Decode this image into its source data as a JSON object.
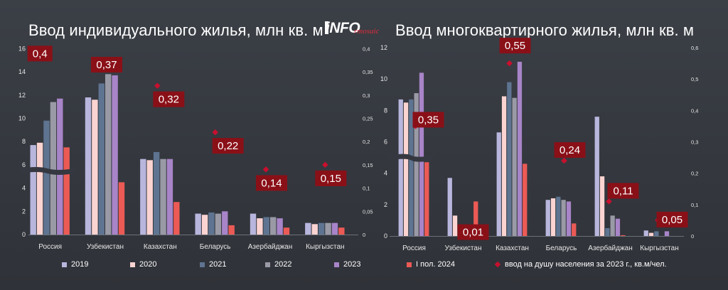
{
  "title_left": "Ввод индивидуального жилья, млн кв. м",
  "title_right": "Ввод многоквартирного жилья, млн кв. м",
  "logo": {
    "main": "iNFO",
    "sub": "rmosaic"
  },
  "colors": {
    "s2019": "#b8b6dd",
    "s2020": "#fbd4d2",
    "s2021": "#5e7491",
    "s2022": "#9a9aa6",
    "s2023": "#a884c8",
    "sH1_2024": "#ec5a55",
    "marker": "#c8102e",
    "label_bg": "#8a1018",
    "axis_text": "#e6e6e6",
    "grid": "#4c5058"
  },
  "legend": [
    {
      "label": "2019",
      "color": "#b8b6dd"
    },
    {
      "label": "2020",
      "color": "#fbd4d2"
    },
    {
      "label": "2021",
      "color": "#5e7491"
    },
    {
      "label": "2022",
      "color": "#9a9aa6"
    },
    {
      "label": "2023",
      "color": "#a884c8"
    },
    {
      "label": "I пол. 2024",
      "color": "#ec5a55"
    },
    {
      "label": "ввод на душу населения за 2023 г., кв.м/чел.",
      "marker": "diamond"
    }
  ],
  "chart_data": [
    {
      "type": "bar",
      "title": "Ввод индивидуального жилья, млн кв. м",
      "categories": [
        "Россия",
        "Узбекистан",
        "Казахстан",
        "Беларусь",
        "Азербайджан",
        "Кыргызстан"
      ],
      "series": [
        {
          "name": "2019",
          "values": [
            7.7,
            11.8,
            6.5,
            1.8,
            1.8,
            1.0
          ]
        },
        {
          "name": "2020",
          "values": [
            7.9,
            11.6,
            6.4,
            1.7,
            1.4,
            0.9
          ]
        },
        {
          "name": "2021",
          "values": [
            9.8,
            13.0,
            7.1,
            1.9,
            1.5,
            1.0
          ]
        },
        {
          "name": "2022",
          "values": [
            11.4,
            13.8,
            6.5,
            1.8,
            1.5,
            1.0
          ]
        },
        {
          "name": "2023",
          "values": [
            11.7,
            13.7,
            6.5,
            2.0,
            1.4,
            1.0
          ]
        },
        {
          "name": "I пол. 2024",
          "values": [
            7.5,
            4.5,
            2.8,
            0.8,
            0.6,
            0.6
          ]
        }
      ],
      "per_capita_2023": {
        "values": [
          0.4,
          0.37,
          0.32,
          0.22,
          0.14,
          0.15
        ],
        "labels": [
          "0,4",
          "0,37",
          "0,32",
          "0,22",
          "0,14",
          "0,15"
        ]
      },
      "ylim": [
        0,
        17
      ],
      "yticks": [
        "0",
        "2",
        "4",
        "6",
        "8",
        "10",
        "12",
        "14",
        "16"
      ],
      "y2lim": [
        0,
        0.425
      ],
      "y2ticks": [
        "0",
        "0,05",
        "0,1",
        "0,15",
        "0,2",
        "0,25",
        "0,3",
        "0,35",
        "0,4"
      ],
      "axis_break_at": 5.5
    },
    {
      "type": "bar",
      "title": "Ввод многоквартирного жилья, млн кв. м",
      "categories": [
        "Россия",
        "Узбекистан",
        "Казахстан",
        "Беларусь",
        "Азербайджан",
        "Кыргызстан"
      ],
      "series": [
        {
          "name": "2019",
          "values": [
            8.7,
            3.7,
            6.6,
            2.3,
            7.6,
            0.35
          ]
        },
        {
          "name": "2020",
          "values": [
            8.5,
            1.3,
            8.9,
            2.4,
            3.8,
            0.2
          ]
        },
        {
          "name": "2021",
          "values": [
            8.7,
            0.3,
            9.8,
            2.5,
            0.5,
            0.3
          ]
        },
        {
          "name": "2022",
          "values": [
            9.1,
            0.5,
            8.8,
            2.3,
            1.3,
            0.0
          ]
        },
        {
          "name": "2023",
          "values": [
            10.4,
            0.6,
            11.1,
            2.2,
            1.1,
            0.3
          ]
        },
        {
          "name": "I пол. 2024",
          "values": [
            4.7,
            2.2,
            4.6,
            0.8,
            0.05,
            0.0
          ]
        }
      ],
      "per_capita_2023": {
        "values": [
          0.35,
          0.01,
          0.55,
          0.24,
          0.11,
          0.05
        ],
        "labels": [
          "0,35",
          "0,01",
          "0,55",
          "0,24",
          "0,11",
          "0,05"
        ]
      },
      "ylim": [
        0,
        12.5
      ],
      "yticks": [
        "0",
        "2",
        "4",
        "6",
        "8",
        "10",
        "12"
      ],
      "y2lim": [
        0,
        0.625
      ],
      "y2ticks": [
        "0",
        "0,1",
        "0,2",
        "0,3",
        "0,4",
        "0,5",
        "0,6"
      ],
      "axis_break_at": 5.0
    }
  ]
}
